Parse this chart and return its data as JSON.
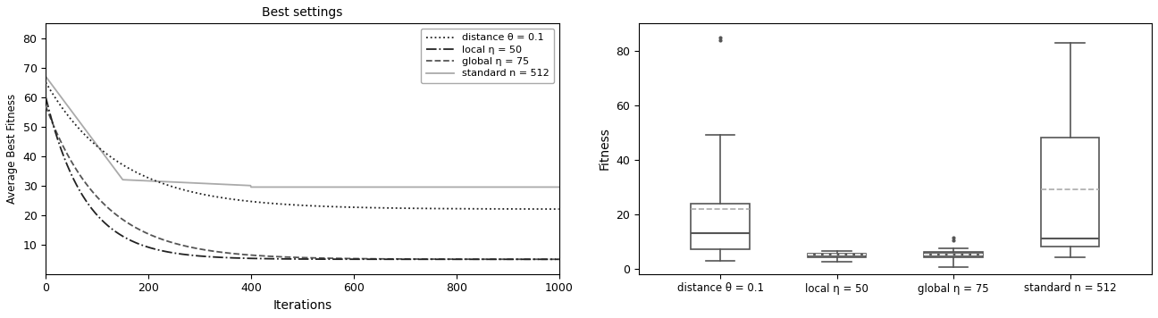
{
  "title_line": "Best settings",
  "xlabel_line": "Iterations",
  "ylabel_line": "Average Best Fitness",
  "ylabel_box": "Fitness",
  "line_xlim": [
    0,
    1000
  ],
  "line_ylim": [
    0,
    85
  ],
  "line_yticks": [
    10,
    20,
    30,
    40,
    50,
    60,
    70,
    80
  ],
  "line_xticks": [
    0,
    200,
    400,
    600,
    800,
    1000
  ],
  "box_labels": [
    "distance θ = 0.1",
    "local η = 50",
    "global η = 75",
    "standard n = 512"
  ],
  "background_color": "#ffffff",
  "dist_data": {
    "q1": 7.0,
    "median": 13.0,
    "q3": 24.0,
    "mean": 22.0,
    "whisker_low": 3.0,
    "whisker_high": 49.0,
    "fliers_high": [
      84.0,
      85.0
    ],
    "fliers_low": []
  },
  "local_data": {
    "q1": 4.0,
    "median": 5.0,
    "q3": 5.5,
    "mean": 5.0,
    "whisker_low": 2.5,
    "whisker_high": 6.5,
    "fliers_high": [],
    "fliers_low": []
  },
  "global_data": {
    "q1": 4.0,
    "median": 5.0,
    "q3": 6.0,
    "mean": 5.0,
    "whisker_low": 0.5,
    "whisker_high": 7.5,
    "fliers_high": [
      10.5,
      11.5
    ],
    "fliers_low": []
  },
  "standard_data": {
    "q1": 8.0,
    "median": 11.0,
    "q3": 48.0,
    "mean": 29.0,
    "whisker_low": 4.0,
    "whisker_high": 83.0,
    "fliers_high": [],
    "fliers_low": []
  }
}
